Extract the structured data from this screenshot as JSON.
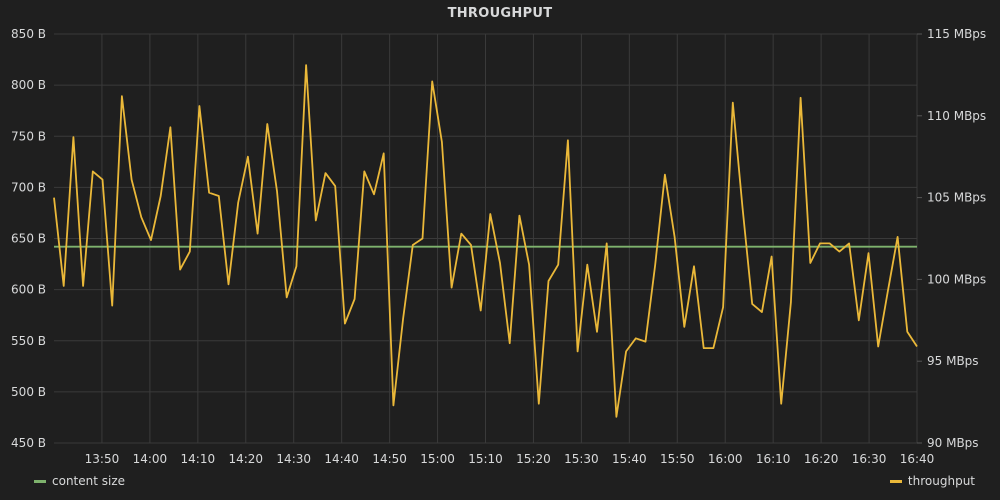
{
  "panel": {
    "title": "THROUGHPUT"
  },
  "chart_data": {
    "type": "line",
    "title": "THROUGHPUT",
    "x_start": "13:40",
    "x_interval_minutes": 1,
    "x_ticks": [
      "13:50",
      "14:00",
      "14:10",
      "14:20",
      "14:30",
      "14:40",
      "14:50",
      "15:00",
      "15:10",
      "15:20",
      "15:30",
      "15:40",
      "15:50",
      "16:00",
      "16:10",
      "16:20",
      "16:30",
      "16:40"
    ],
    "y_left": {
      "unit": "B",
      "range": [
        450,
        850
      ],
      "ticks": [
        "450 B",
        "500 B",
        "550 B",
        "600 B",
        "650 B",
        "700 B",
        "750 B",
        "800 B",
        "850 B"
      ]
    },
    "y_right": {
      "unit": "MBps",
      "range": [
        90,
        115
      ],
      "ticks": [
        "90 MBps",
        "95 MBps",
        "100 MBps",
        "105 MBps",
        "110 MBps",
        "115 MBps"
      ]
    },
    "grid": true,
    "series": [
      {
        "name": "content size",
        "axis": "left",
        "color": "#7eb26d",
        "values": [
          642,
          642
        ]
      },
      {
        "name": "throughput",
        "axis": "right",
        "color": "#eab839",
        "values": [
          105,
          99.6,
          108.7,
          99.6,
          106.6,
          106.1,
          98.4,
          111.2,
          106.1,
          103.8,
          102.4,
          105.1,
          109.3,
          100.6,
          101.7,
          110.6,
          105.3,
          105.1,
          99.7,
          104.7,
          107.5,
          102.8,
          109.5,
          105.4,
          98.9,
          100.8,
          113.1,
          103.6,
          106.5,
          105.7,
          97.3,
          98.8,
          106.6,
          105.2,
          107.7,
          92.3,
          97.6,
          102.1,
          102.5,
          112.1,
          108.4,
          99.5,
          102.8,
          102.1,
          98.1,
          104,
          101,
          96.1,
          103.9,
          100.9,
          92.4,
          99.9,
          100.9,
          108.5,
          95.6,
          100.9,
          96.8,
          102.2,
          91.6,
          95.6,
          96.4,
          96.2,
          100.9,
          106.4,
          102.6,
          97.1,
          100.8,
          95.8,
          95.8,
          98.3,
          110.8,
          104.4,
          98.5,
          98,
          101.4,
          92.4,
          98.6,
          111.1,
          101,
          102.2,
          102.2,
          101.7,
          102.2,
          97.5,
          101.6,
          95.9,
          99.3,
          102.6,
          96.8,
          95.9
        ]
      }
    ]
  },
  "legend": {
    "left": {
      "label": "content size",
      "color": "#7eb26d"
    },
    "right": {
      "label": "throughput",
      "color": "#eab839"
    }
  }
}
